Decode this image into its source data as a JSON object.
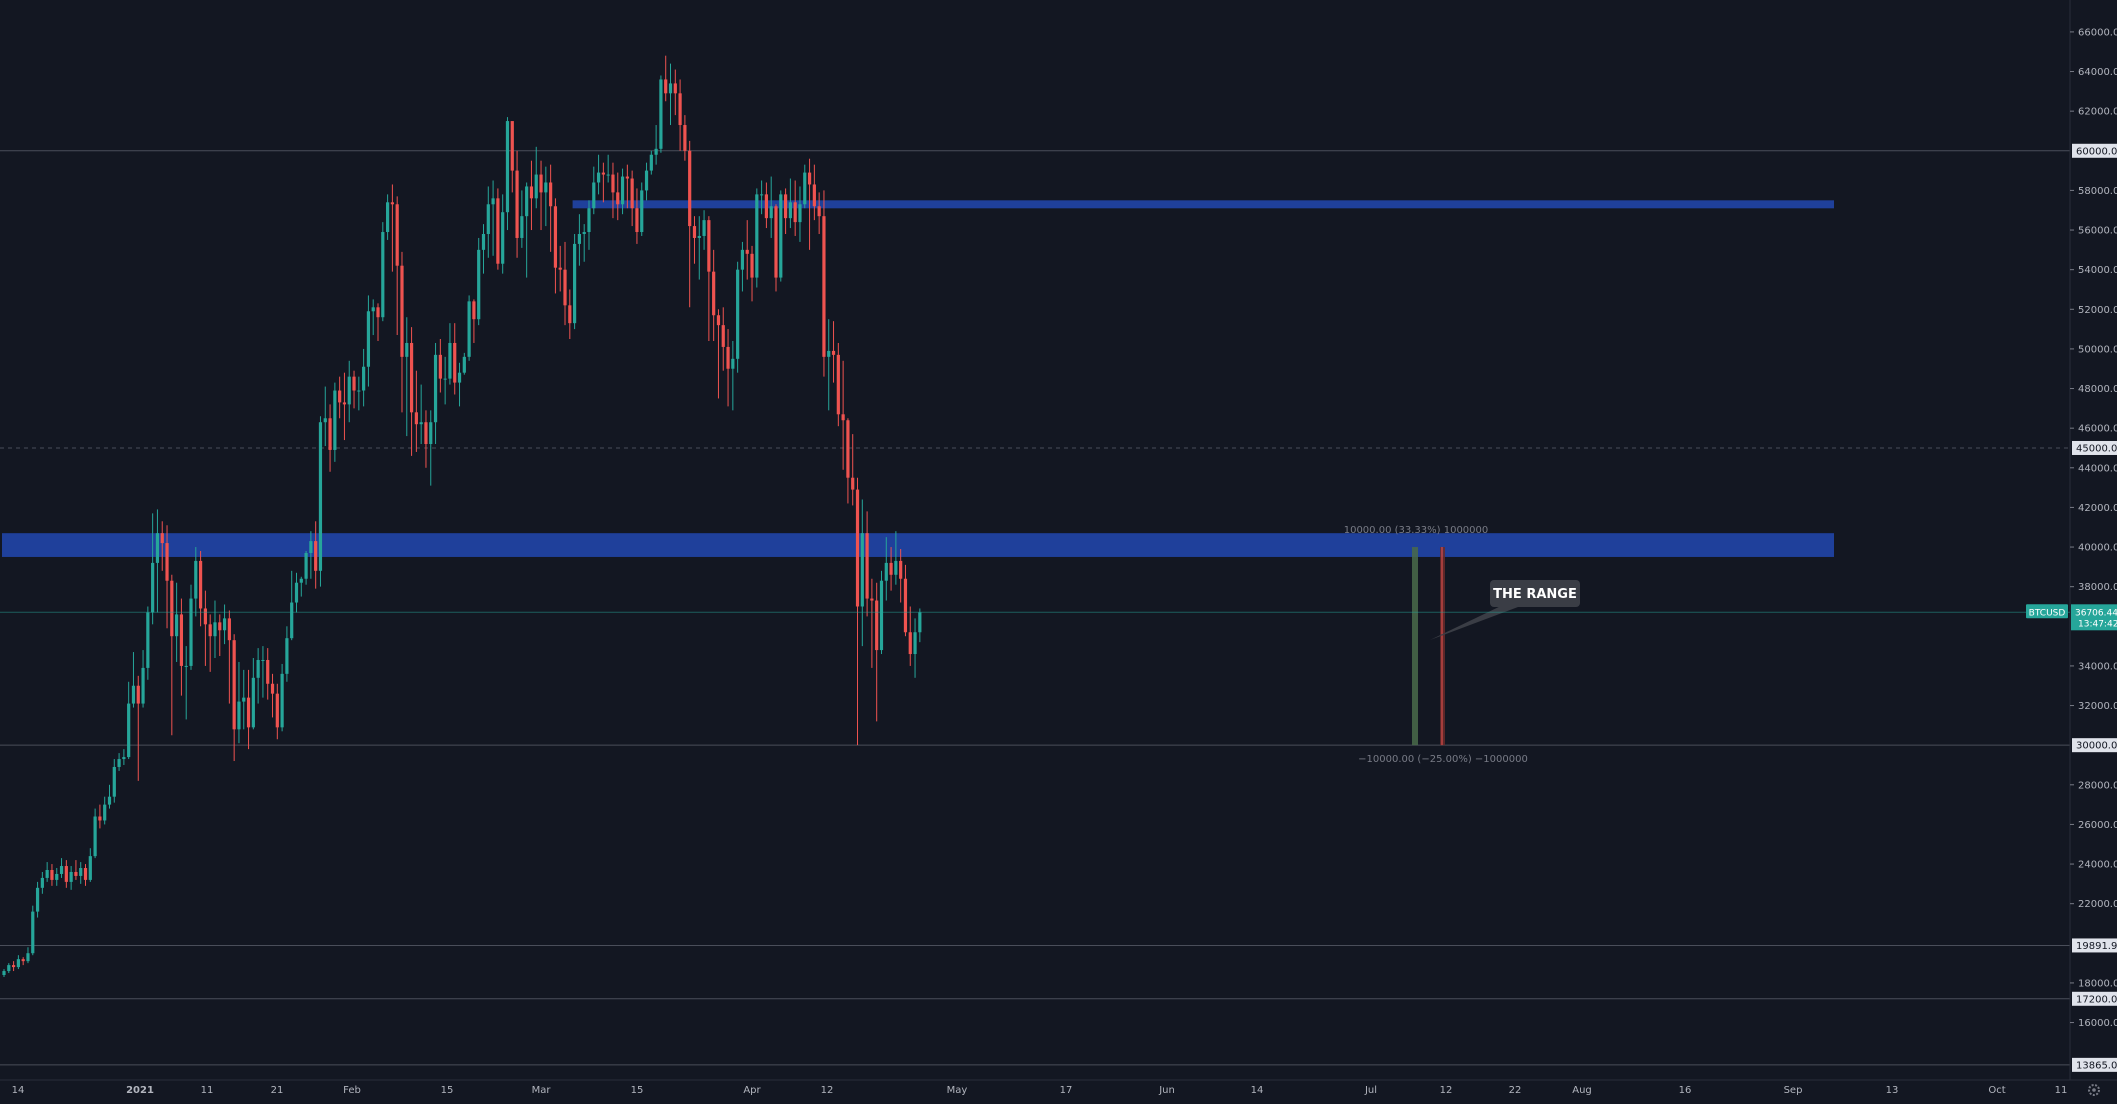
{
  "symbol": "BTCUSD",
  "last_price": "36706.44",
  "countdown": "13:47:42",
  "colors": {
    "background": "#131722",
    "up": "#26a69a",
    "down": "#ef5350",
    "zone": "#2962ff",
    "grid_line": "#4a4e5a",
    "tag_bg": "#26a69a"
  },
  "annotation": {
    "label": "THE RANGE"
  },
  "measure": {
    "upper_text": "10000.00 (33.33%) 1000000",
    "lower_text": "−10000.00 (−25.00%) −1000000"
  },
  "settings_icon": "gear-icon",
  "chart_data": {
    "type": "candlestick",
    "timeframe": "daily",
    "y_range": [
      13000,
      66500
    ],
    "y_ticks": [
      66000,
      64000,
      62000,
      58000,
      56000,
      54000,
      52000,
      50000,
      48000,
      46000,
      44000,
      42000,
      40000,
      38000,
      34000,
      32000,
      28000,
      26000,
      24000,
      22000,
      18000,
      16000
    ],
    "tagged_levels": [
      {
        "value": 60000,
        "label": "60000.00",
        "line": "solid"
      },
      {
        "value": 45000,
        "label": "45000.00",
        "line": "dashed"
      },
      {
        "value": 30000,
        "label": "30000.00",
        "line": "solid"
      },
      {
        "value": 19891.99,
        "label": "19891.99",
        "line": "solid"
      },
      {
        "value": 17200,
        "label": "17200.00",
        "line": "solid"
      },
      {
        "value": 13865,
        "label": "13865.00",
        "line": "solid"
      }
    ],
    "x_labels": [
      "14",
      "2021",
      "11",
      "21",
      "Feb",
      "15",
      "Mar",
      "15",
      "Apr",
      "12",
      "May",
      "17",
      "Jun",
      "14",
      "Jul",
      "12",
      "22",
      "Aug",
      "16",
      "Sep",
      "13",
      "Oct",
      "11"
    ],
    "zones": [
      {
        "low": 57100,
        "high": 57500,
        "start_candle": 119
      },
      {
        "low": 39500,
        "high": 40700,
        "start_candle": 0
      }
    ],
    "candles": [
      [
        18400,
        18600,
        18700,
        18300
      ],
      [
        18600,
        18900,
        19000,
        18500
      ],
      [
        18900,
        18800,
        19100,
        18600
      ],
      [
        18800,
        19200,
        19400,
        18700
      ],
      [
        19200,
        19100,
        19300,
        18900
      ],
      [
        19100,
        19500,
        19800,
        19000
      ],
      [
        19500,
        21600,
        21900,
        19400
      ],
      [
        21600,
        22800,
        23100,
        21300
      ],
      [
        22800,
        23300,
        23600,
        22500
      ],
      [
        23300,
        23700,
        24100,
        23100
      ],
      [
        23700,
        23200,
        24000,
        22900
      ],
      [
        23200,
        23500,
        23800,
        22900
      ],
      [
        23500,
        23900,
        24300,
        23300
      ],
      [
        23900,
        23100,
        24200,
        22800
      ],
      [
        23100,
        23600,
        23900,
        22700
      ],
      [
        23600,
        23400,
        24200,
        23200
      ],
      [
        23400,
        23800,
        24100,
        23000
      ],
      [
        23800,
        23200,
        24000,
        22900
      ],
      [
        23200,
        24400,
        24800,
        23100
      ],
      [
        24400,
        26400,
        26800,
        24300
      ],
      [
        26400,
        26200,
        27000,
        25800
      ],
      [
        26200,
        27000,
        27400,
        26000
      ],
      [
        27000,
        27400,
        28000,
        26800
      ],
      [
        27400,
        28900,
        29300,
        27100
      ],
      [
        28900,
        29300,
        29600,
        28700
      ],
      [
        29300,
        29400,
        29800,
        29000
      ],
      [
        29400,
        32100,
        33200,
        29300
      ],
      [
        32100,
        33000,
        34700,
        31900
      ],
      [
        33000,
        32100,
        33500,
        28200
      ],
      [
        32100,
        33900,
        34800,
        31900
      ],
      [
        33900,
        36700,
        37000,
        33300
      ],
      [
        36700,
        39200,
        41700,
        36100
      ],
      [
        39200,
        40700,
        41900,
        36700
      ],
      [
        40700,
        40200,
        41300,
        38800
      ],
      [
        40200,
        38300,
        41100,
        35900
      ],
      [
        38300,
        35500,
        38600,
        30500
      ],
      [
        35500,
        36600,
        38200,
        34200
      ],
      [
        36600,
        34000,
        37400,
        32500
      ],
      [
        34000,
        34000,
        35000,
        31300
      ],
      [
        34000,
        37400,
        38100,
        33800
      ],
      [
        37400,
        39300,
        40000,
        36500
      ],
      [
        39300,
        36900,
        39800,
        36000
      ],
      [
        36900,
        36100,
        37800,
        34000
      ],
      [
        36100,
        35500,
        36600,
        33700
      ],
      [
        35500,
        36200,
        37300,
        34400
      ],
      [
        36200,
        35800,
        36600,
        34500
      ],
      [
        35800,
        36400,
        37100,
        35100
      ],
      [
        36400,
        35300,
        36800,
        32100
      ],
      [
        35300,
        30800,
        35600,
        29200
      ],
      [
        30800,
        32200,
        34200,
        30100
      ],
      [
        32200,
        32400,
        33800,
        30800
      ],
      [
        32400,
        30900,
        33800,
        29800
      ],
      [
        30900,
        33400,
        34400,
        30800
      ],
      [
        33400,
        34300,
        34900,
        32100
      ],
      [
        34300,
        34300,
        35000,
        32400
      ],
      [
        34300,
        33100,
        34900,
        32300
      ],
      [
        33100,
        32600,
        33600,
        31400
      ],
      [
        32600,
        30900,
        33100,
        30300
      ],
      [
        30900,
        33600,
        34100,
        30700
      ],
      [
        33600,
        35400,
        36000,
        33200
      ],
      [
        35400,
        37200,
        38800,
        35300
      ],
      [
        37200,
        38200,
        38700,
        36700
      ],
      [
        38200,
        38400,
        38500,
        37500
      ],
      [
        38400,
        39700,
        39800,
        38100
      ],
      [
        39700,
        40300,
        40800,
        38400
      ],
      [
        40300,
        38800,
        41300,
        37900
      ],
      [
        38800,
        46300,
        46600,
        38000
      ],
      [
        46300,
        46500,
        48100,
        45100
      ],
      [
        46500,
        44900,
        47200,
        43800
      ],
      [
        44900,
        47900,
        48300,
        44300
      ],
      [
        47900,
        47300,
        48600,
        46500
      ],
      [
        47300,
        47200,
        48800,
        45400
      ],
      [
        47200,
        48600,
        49400,
        46300
      ],
      [
        48600,
        47900,
        48900,
        47000
      ],
      [
        47900,
        47900,
        48600,
        46900
      ],
      [
        47900,
        49100,
        50000,
        47100
      ],
      [
        49100,
        51900,
        52700,
        48100
      ],
      [
        51900,
        52100,
        52500,
        50700
      ],
      [
        52100,
        51600,
        52300,
        50400
      ],
      [
        51600,
        55900,
        56400,
        51400
      ],
      [
        55900,
        57400,
        57800,
        55500
      ],
      [
        57400,
        57300,
        58300,
        53900
      ],
      [
        57300,
        54200,
        57700,
        50700
      ],
      [
        54200,
        49600,
        54900,
        46800
      ],
      [
        49600,
        50300,
        51600,
        45600
      ],
      [
        50300,
        46800,
        51100,
        44600
      ],
      [
        46800,
        46200,
        48900,
        44800
      ],
      [
        46200,
        46300,
        48200,
        45200
      ],
      [
        46300,
        45200,
        46900,
        44000
      ],
      [
        45200,
        46300,
        46900,
        43100
      ],
      [
        46300,
        49700,
        50300,
        45200
      ],
      [
        49700,
        48500,
        50500,
        47800
      ],
      [
        48500,
        48500,
        49600,
        47200
      ],
      [
        48500,
        50300,
        51300,
        48200
      ],
      [
        50300,
        48300,
        51300,
        47700
      ],
      [
        48300,
        48800,
        49300,
        47100
      ],
      [
        48800,
        49600,
        49800,
        48700
      ],
      [
        49600,
        52400,
        52700,
        49400
      ],
      [
        52400,
        51500,
        52500,
        50300
      ],
      [
        51500,
        55000,
        55600,
        51200
      ],
      [
        55000,
        55800,
        56300,
        53800
      ],
      [
        55800,
        57300,
        58200,
        54600
      ],
      [
        57300,
        57600,
        58500,
        54700
      ],
      [
        57600,
        54300,
        58100,
        54000
      ],
      [
        54300,
        56900,
        57800,
        53800
      ],
      [
        56900,
        61500,
        61700,
        56000
      ],
      [
        61500,
        59000,
        61300,
        57900
      ],
      [
        59000,
        55600,
        60000,
        54600
      ],
      [
        55600,
        56700,
        58000,
        55100
      ],
      [
        56700,
        58200,
        58400,
        53600
      ],
      [
        58200,
        57600,
        59500,
        56000
      ],
      [
        57600,
        58800,
        60200,
        57100
      ],
      [
        58800,
        57900,
        59500,
        56000
      ],
      [
        57900,
        58400,
        59200,
        56200
      ],
      [
        58400,
        57200,
        59300,
        54900
      ],
      [
        57200,
        54100,
        57600,
        52800
      ],
      [
        54100,
        54000,
        55200,
        52900
      ],
      [
        54000,
        52200,
        55400,
        51200
      ],
      [
        52200,
        51300,
        53000,
        50500
      ],
      [
        51300,
        55300,
        55800,
        51000
      ],
      [
        55300,
        55800,
        56800,
        54200
      ],
      [
        55800,
        55900,
        56300,
        54400
      ],
      [
        55900,
        57100,
        57500,
        55000
      ],
      [
        57100,
        58400,
        59200,
        56800
      ],
      [
        58400,
        58900,
        59800,
        57800
      ],
      [
        58900,
        58800,
        59400,
        57400
      ],
      [
        58800,
        58800,
        59800,
        58400
      ],
      [
        58800,
        57900,
        59400,
        56600
      ],
      [
        57900,
        57300,
        58900,
        56500
      ],
      [
        57300,
        58700,
        59100,
        56800
      ],
      [
        58700,
        58600,
        59300,
        57100
      ],
      [
        58600,
        57100,
        59000,
        56200
      ],
      [
        57100,
        55900,
        58100,
        55300
      ],
      [
        55900,
        58000,
        58400,
        55700
      ],
      [
        58000,
        59000,
        59400,
        57500
      ],
      [
        59000,
        59800,
        60000,
        58800
      ],
      [
        59800,
        60100,
        61300,
        59300
      ],
      [
        60100,
        63600,
        63800,
        59900
      ],
      [
        63600,
        62900,
        64800,
        62500
      ],
      [
        62900,
        63400,
        64400,
        61300
      ],
      [
        63400,
        62900,
        64100,
        61800
      ],
      [
        62900,
        61300,
        63600,
        60000
      ],
      [
        61300,
        60000,
        61800,
        59500
      ],
      [
        60000,
        56200,
        60500,
        52100
      ],
      [
        56200,
        55600,
        56700,
        54300
      ],
      [
        55600,
        55700,
        56700,
        53500
      ],
      [
        55700,
        56500,
        57000,
        55000
      ],
      [
        56500,
        53900,
        56700,
        50400
      ],
      [
        53900,
        51700,
        55000,
        50400
      ],
      [
        51700,
        51200,
        52000,
        47500
      ],
      [
        51200,
        50100,
        52100,
        48900
      ],
      [
        50100,
        49000,
        51000,
        47100
      ],
      [
        49000,
        49500,
        50400,
        46900
      ],
      [
        49500,
        54000,
        54400,
        48800
      ],
      [
        54000,
        55000,
        55400,
        52900
      ],
      [
        55000,
        54800,
        56500,
        53500
      ],
      [
        54800,
        53600,
        55200,
        52400
      ],
      [
        53600,
        57800,
        58100,
        53100
      ],
      [
        57800,
        57800,
        58500,
        56800
      ],
      [
        57800,
        56600,
        58400,
        56100
      ],
      [
        56600,
        57200,
        58700,
        55600
      ],
      [
        57200,
        53600,
        57300,
        52900
      ],
      [
        53600,
        57800,
        58000,
        53400
      ],
      [
        57800,
        56600,
        58100,
        55800
      ],
      [
        56600,
        57400,
        58600,
        56100
      ],
      [
        57400,
        56400,
        58500,
        55700
      ],
      [
        56400,
        57300,
        58200,
        55400
      ],
      [
        57300,
        58900,
        59300,
        57100
      ],
      [
        58900,
        58300,
        59600,
        55000
      ],
      [
        58300,
        57200,
        59300,
        56500
      ],
      [
        57200,
        56700,
        57900,
        55800
      ],
      [
        56700,
        49600,
        58000,
        48600
      ],
      [
        49600,
        49900,
        51500,
        46900
      ],
      [
        49900,
        49700,
        51400,
        48300
      ],
      [
        49700,
        46700,
        50300,
        46100
      ],
      [
        46700,
        46400,
        49400,
        43900
      ],
      [
        46400,
        43500,
        46500,
        42200
      ],
      [
        43500,
        42900,
        45700,
        42100
      ],
      [
        42900,
        37000,
        43500,
        30000
      ],
      [
        37000,
        40700,
        42400,
        35000
      ],
      [
        40700,
        37400,
        41800,
        36500
      ],
      [
        37400,
        37300,
        38400,
        33900
      ],
      [
        37300,
        34800,
        38200,
        31200
      ],
      [
        34800,
        38300,
        38800,
        34600
      ],
      [
        38300,
        39200,
        40500,
        37300
      ],
      [
        39200,
        38600,
        40000,
        37800
      ],
      [
        38600,
        39300,
        40800,
        38100
      ],
      [
        39300,
        38400,
        39900,
        37200
      ],
      [
        38400,
        35700,
        39100,
        35500
      ],
      [
        35700,
        34600,
        37000,
        34000
      ],
      [
        34600,
        35700,
        36400,
        33400
      ],
      [
        35700,
        36706,
        36900,
        35200
      ]
    ]
  }
}
